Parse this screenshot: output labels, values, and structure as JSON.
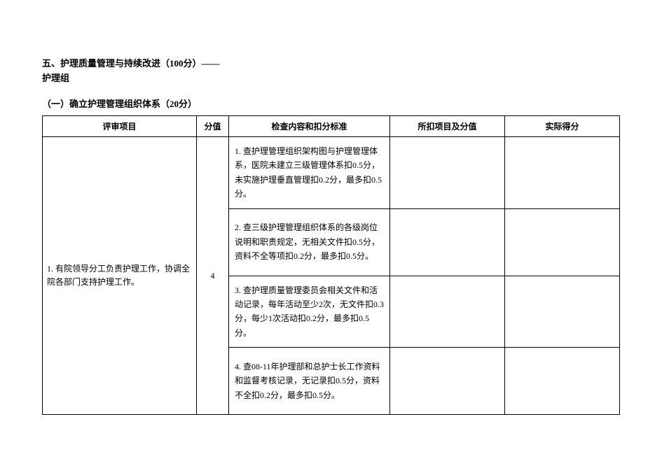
{
  "header": {
    "title_line1": "五、护理质量管理与持续改进（100分）——",
    "title_line2": "护理组",
    "subtitle": "（一）确立护理管理组织体系（20分）"
  },
  "table": {
    "columns": {
      "project": "评审项目",
      "score": "分值",
      "content": "检查内容和扣分标准",
      "deduct": "所扣项目及分值",
      "actual": "实际得分"
    },
    "rows": [
      {
        "project": "1. 有院领导分工负责护理工作，协调全院各部门支持护理工作。",
        "score": "4",
        "contents": [
          "1. 查护理管理组织架构图与护理管理体系，医院未建立三级管理体系扣0.5分，未实施护理垂直管理扣0.2分，最多扣0.5分。",
          "2. 查三级护理管理组织体系的各级岗位说明和职责规定，无相关文件扣0.5分，资料不全等项扣0.2分，最多扣0.5分。",
          "3. 查护理质量管理委员会相关文件和活动记录，每年活动至少2次，无文件扣0.3分，每少1次活动扣0.2分，最多扣0.5分。",
          "4. 查08-11年护理部和总护士长工作资料和监督考核记录，无记录扣0.5分，资料不全扣0.2分，最多扣0.5分。"
        ]
      }
    ]
  },
  "style": {
    "font_family": "SimSun",
    "title_fontsize": 13,
    "cell_fontsize": 12,
    "border_color": "#000000",
    "background_color": "#ffffff",
    "text_color": "#000000"
  }
}
